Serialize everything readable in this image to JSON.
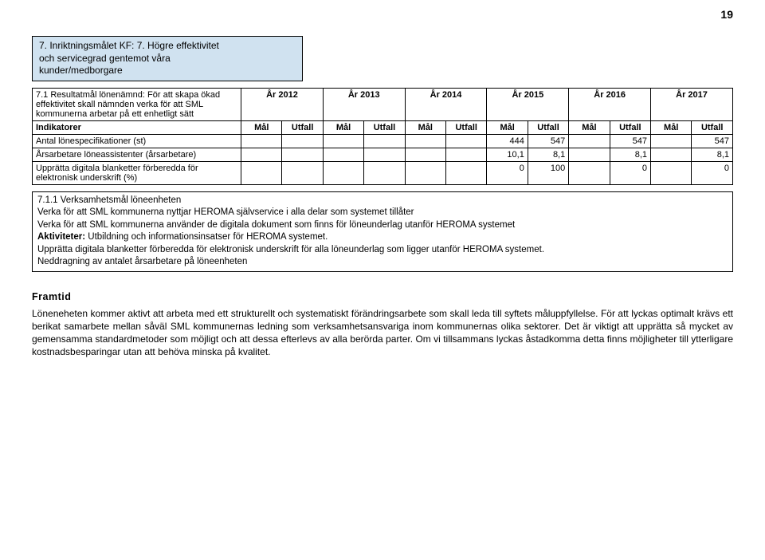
{
  "page_number": "19",
  "banner": {
    "line1": "7. Inriktningsmålet KF: 7. Högre effektivitet",
    "line2": "och servicegrad gentemot våra",
    "line3": "kunder/medborgare"
  },
  "table": {
    "row_label_top": "7.1 Resultatmål lönenämnd: För att skapa ökad effektivitet skall nämnden verka för att SML kommunerna arbetar på ett enhetligt sätt",
    "year_headers": [
      "År 2012",
      "År 2013",
      "År 2014",
      "År 2015",
      "År 2016",
      "År 2017"
    ],
    "indicator_label": "Indikatorer",
    "sub_headers": [
      "Mål",
      "Utfall",
      "Mål",
      "Utfall",
      "Mål",
      "Utfall",
      "Mål",
      "Utfall",
      "Mål",
      "Utfall",
      "Mål",
      "Utfall"
    ],
    "rows": [
      {
        "label": "Antal lönespecifikationer (st)",
        "cells": [
          "",
          "",
          "",
          "",
          "",
          "",
          "444",
          "547",
          "",
          "547",
          "",
          "547"
        ]
      },
      {
        "label": "Årsarbetare löneassistenter (årsarbetare)",
        "cells": [
          "",
          "",
          "",
          "",
          "",
          "",
          "10,1",
          "8,1",
          "",
          "8,1",
          "",
          "8,1"
        ]
      },
      {
        "label": "Upprätta digitala blanketter förberedda för elektronisk underskrift (%)",
        "cells": [
          "",
          "",
          "",
          "",
          "",
          "",
          "0",
          "100",
          "",
          "0",
          "",
          "0"
        ]
      }
    ]
  },
  "sub_section": {
    "title": "7.1.1    Verksamhetsmål löneenheten",
    "lines": [
      "Verka för att SML kommunerna nyttjar HEROMA självservice i alla delar som systemet tillåter",
      "Verka för att SML kommunerna använder de digitala dokument som finns för löneunderlag utanför HEROMA systemet",
      "Aktiviteter: Utbildning och informationsinsatser för HEROMA systemet.",
      "Upprätta digitala blanketter förberedda för elektronisk underskrift för alla löneunderlag som ligger utanför HEROMA systemet.",
      "Neddragning av antalet årsarbetare på löneenheten"
    ],
    "bold_prefix_line": 2,
    "bold_prefix_text": "Aktiviteter:"
  },
  "framtid": {
    "title": "Framtid",
    "body": "Löneneheten kommer aktivt att arbeta med ett strukturellt och systematiskt förändringsarbete som skall leda till syftets måluppfyllelse. För att lyckas optimalt krävs ett berikat samarbete mellan såväl SML kommunernas ledning som verksamhetsansvariga inom kommunernas olika sektorer. Det är viktigt att upprätta så mycket av gemensamma standardmetoder som möjligt och att dessa efterlevs av alla berörda parter. Om vi tillsammans lyckas åstadkomma detta finns möjligheter till ytterligare kostnadsbesparingar utan att behöva minska på kvalitet."
  }
}
